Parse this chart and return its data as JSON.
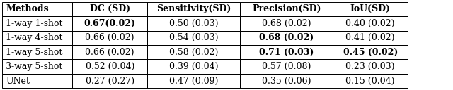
{
  "col_headers": [
    "Methods",
    "DC (SD)",
    "Sensitivity(SD)",
    "Precision(SD)",
    "IoU(SD)"
  ],
  "cell_data": [
    [
      "1-way 1-shot",
      "0.67(0.02)",
      "0.50 (0.03)",
      "0.68 (0.02)",
      "0.40 (0.02)"
    ],
    [
      "1-way 4-shot",
      "0.66 (0.02)",
      "0.54 (0.03)",
      "0.68 (0.02)",
      "0.41 (0.02)"
    ],
    [
      "1-way 5-shot",
      "0.66 (0.02)",
      "0.58 (0.02)",
      "0.71 (0.03)",
      "0.45 (0.02)"
    ],
    [
      "3-way 5-shot",
      "0.52 (0.04)",
      "0.39 (0.04)",
      "0.57 (0.08)",
      "0.23 (0.03)"
    ],
    [
      "UNet",
      "0.27 (0.27)",
      "0.47 (0.09)",
      "0.35 (0.06)",
      "0.15 (0.04)"
    ]
  ],
  "bold_map": {
    "0,1": true,
    "1,3": true,
    "2,3": true,
    "2,4": true
  },
  "figsize": [
    6.4,
    1.28
  ],
  "dpi": 100,
  "font_size": 9.0,
  "background_color": "#ffffff"
}
